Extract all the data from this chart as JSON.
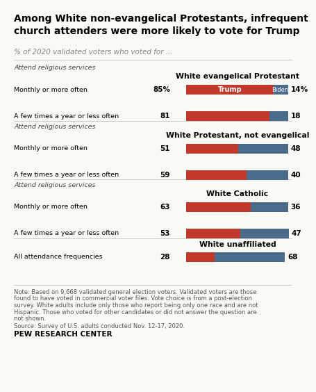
{
  "title_line1": "Among White non-evangelical Protestants, infrequent",
  "title_line2": "church attenders were more likely to vote for Trump",
  "subtitle": "% of 2020 validated voters who voted for ...",
  "trump_color": "#C0392B",
  "biden_color": "#4A6B8A",
  "background_color": "#F9F9F6",
  "groups": [
    {
      "group_label": "White evangelical Protestant",
      "attend_label": "Attend religious services",
      "rows": [
        {
          "label": "Monthly or more often",
          "trump": 85,
          "biden": 14,
          "trump_pct": "85%",
          "biden_pct": "14%",
          "show_legend": true
        },
        {
          "label": "A few times a year or less often",
          "trump": 81,
          "biden": 18,
          "trump_pct": "81",
          "biden_pct": "18",
          "show_legend": false
        }
      ]
    },
    {
      "group_label": "White Protestant, not evangelical",
      "attend_label": "Attend religious services",
      "rows": [
        {
          "label": "Monthly or more often",
          "trump": 51,
          "biden": 48,
          "trump_pct": "51",
          "biden_pct": "48",
          "show_legend": false
        },
        {
          "label": "A few times a year or less often",
          "trump": 59,
          "biden": 40,
          "trump_pct": "59",
          "biden_pct": "40",
          "show_legend": false
        }
      ]
    },
    {
      "group_label": "White Catholic",
      "attend_label": "Attend religious services",
      "rows": [
        {
          "label": "Monthly or more often",
          "trump": 63,
          "biden": 36,
          "trump_pct": "63",
          "biden_pct": "36",
          "show_legend": false
        },
        {
          "label": "A few times a year or less often",
          "trump": 53,
          "biden": 47,
          "trump_pct": "53",
          "biden_pct": "47",
          "show_legend": false
        }
      ]
    },
    {
      "group_label": "White unaffiliated",
      "attend_label": null,
      "rows": [
        {
          "label": "All attendance frequencies",
          "trump": 28,
          "biden": 68,
          "trump_pct": "28",
          "biden_pct": "68",
          "show_legend": false
        }
      ]
    }
  ],
  "note_line1": "Note: Based on 9,668 validated general election voters. Validated voters are those",
  "note_line2": "found to have voted in commercial voter files. Vote choice is from a post-election",
  "note_line3": "survey. White adults include only those who report being only one race and are not",
  "note_line4": "Hispanic. Those who voted for other candidates or did not answer the question are",
  "note_line5": "not shown.",
  "source": "Source: Survey of U.S. adults conducted Nov. 12-17, 2020.",
  "credit": "PEW RESEARCH CENTER"
}
